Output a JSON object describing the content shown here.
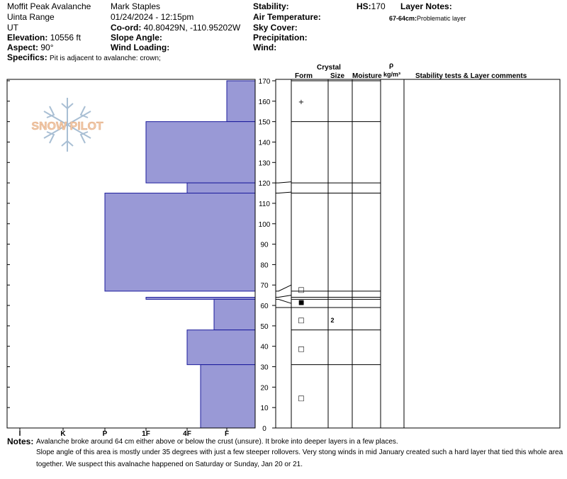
{
  "header": {
    "location": "Moffit Peak Avalanche",
    "range": "Uinta Range",
    "state": "UT",
    "elevation_label": "Elevation:",
    "elevation_value": "10556 ft",
    "aspect_label": "Aspect:",
    "aspect_value": "90°",
    "specifics_label": "Specifics:",
    "specifics_value": "Pit is adjacent to avalanche: crown;",
    "observer": "Mark Staples",
    "datetime": "01/24/2024 - 12:15pm",
    "coord_label": "Co-ord:",
    "coord_value": "40.80429N, -110.95202W",
    "slope_label": "Slope Angle:",
    "wind_loading_label": "Wind Loading:",
    "stability_label": "Stability:",
    "air_temp_label": "Air Temperature:",
    "sky_label": "Sky Cover:",
    "precip_label": "Precipitation:",
    "wind_label": "Wind:",
    "hs_label": "HS:",
    "hs_value": "170",
    "layer_notes_label": "Layer Notes:",
    "layer_note_depth": "67-64cm:",
    "layer_note_text": "Problematic layer"
  },
  "logo_text": "SNOW PILOT",
  "columns": {
    "crystal": "Crystal",
    "form": "Form",
    "size": "Size",
    "moisture": "Moisture",
    "density_symbol": "ρ",
    "density_unit": "kg/m³",
    "stability": "Stability tests & Layer comments"
  },
  "hardness_axis": [
    "I",
    "K",
    "P",
    "1F",
    "4F",
    "F"
  ],
  "depth_axis": [
    "170",
    "160",
    "150",
    "140",
    "130",
    "120",
    "110",
    "100",
    "90",
    "80",
    "70",
    "60",
    "50",
    "40",
    "30",
    "20",
    "10",
    "0"
  ],
  "chart_data": {
    "type": "bar",
    "title": "",
    "xlabel": "",
    "ylabel": "",
    "hs_cm": 170,
    "ylim": [
      0,
      170
    ],
    "hardness_scale": [
      "I",
      "K",
      "P",
      "1F",
      "4F",
      "F"
    ],
    "layers": [
      {
        "top": 170,
        "bottom": 150,
        "hardness": "F"
      },
      {
        "top": 150,
        "bottom": 120,
        "hardness": "1F"
      },
      {
        "top": 120,
        "bottom": 115,
        "hardness": "4F"
      },
      {
        "top": 115,
        "bottom": 67,
        "hardness": "P"
      },
      {
        "top": 64,
        "bottom": 63,
        "hardness": "1F"
      },
      {
        "top": 63,
        "bottom": 48,
        "hardness": "F+"
      },
      {
        "top": 48,
        "bottom": 31,
        "hardness": "4F"
      },
      {
        "top": 31,
        "bottom": 0,
        "hardness": "4F-"
      }
    ],
    "layer_boundaries": [
      170,
      150,
      120,
      115,
      67,
      64,
      63,
      59,
      48,
      31,
      0
    ],
    "grain_marks": [
      {
        "depth": 160,
        "symbol": "+",
        "size": ""
      },
      {
        "depth": 68,
        "symbol": "□",
        "size": ""
      },
      {
        "depth": 62,
        "symbol": "■",
        "size": ""
      },
      {
        "depth": 53,
        "symbol": "□",
        "size": "2"
      },
      {
        "depth": 39,
        "symbol": "□",
        "size": ""
      },
      {
        "depth": 15,
        "symbol": "□",
        "size": ""
      }
    ]
  },
  "notes": {
    "label": "Notes:",
    "line1": "Avalanche broke around 64 cm either above or below the crust (unsure). It broke into deeper layers in a few places.",
    "line2": "Slope angle of this area is mostly under 35 degrees with just a few steeper rollovers. Very stong winds in mid January created such a hard layer that tied this whole area",
    "line3": "together. We suspect this avalnache happened on Saturday or Sunday, Jan 20 or 21."
  },
  "colors": {
    "bar_fill": "#9999d6",
    "bar_stroke": "#1c1c9c",
    "logo_fill": "#f1c9a8",
    "snowflake": "#a9bfd4"
  }
}
